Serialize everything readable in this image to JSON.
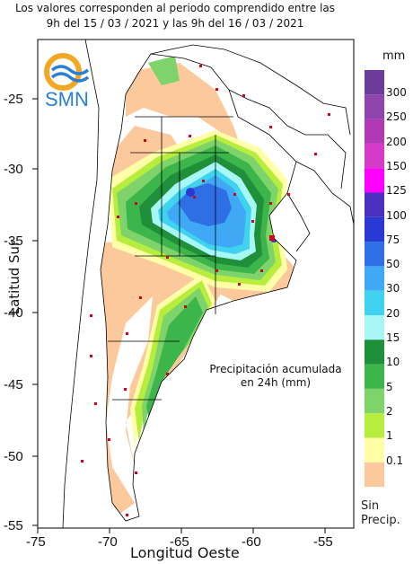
{
  "header": {
    "line1": "Los valores corresponden al periodo comprendido entre las",
    "line2": "9h del 15 / 03 / 2021  y las 9h del 16 / 03 / 2021"
  },
  "logo": {
    "text": "SMN"
  },
  "axes": {
    "xlabel": "Longitud Oeste",
    "ylabel": "Latitud Sur",
    "x_ticks": [
      "-75",
      "-70",
      "-65",
      "-60",
      "-55"
    ],
    "y_ticks": [
      "-25",
      "-30",
      "-35",
      "-40",
      "-45",
      "-50",
      "-55"
    ]
  },
  "annotation": {
    "line1": "Precipitación acumulada",
    "line2": "en 24h (mm)"
  },
  "legend": {
    "unit": "mm",
    "no_precip_line1": "Sin",
    "no_precip_line2": "Precip.",
    "bins": [
      {
        "label": "300",
        "color": "#6a3d9a"
      },
      {
        "label": "250",
        "color": "#8e44ad"
      },
      {
        "label": "200",
        "color": "#b03ab5"
      },
      {
        "label": "150",
        "color": "#d63ac8"
      },
      {
        "label": "125",
        "color": "#ff00ff"
      },
      {
        "label": "100",
        "color": "#4b2fbf"
      },
      {
        "label": "75",
        "color": "#2a38d6"
      },
      {
        "label": "50",
        "color": "#2f6fe6"
      },
      {
        "label": "30",
        "color": "#3fa9f5"
      },
      {
        "label": "20",
        "color": "#3fd3ef"
      },
      {
        "label": "15",
        "color": "#a6f7f5"
      },
      {
        "label": "10",
        "color": "#1f8f3a"
      },
      {
        "label": "5",
        "color": "#3cb54a"
      },
      {
        "label": "2",
        "color": "#7fd36b"
      },
      {
        "label": "1",
        "color": "#b7ee3d"
      },
      {
        "label": "0.1",
        "color": "#ffffa8"
      },
      {
        "label": "",
        "color": "#fbc99c"
      }
    ]
  }
}
